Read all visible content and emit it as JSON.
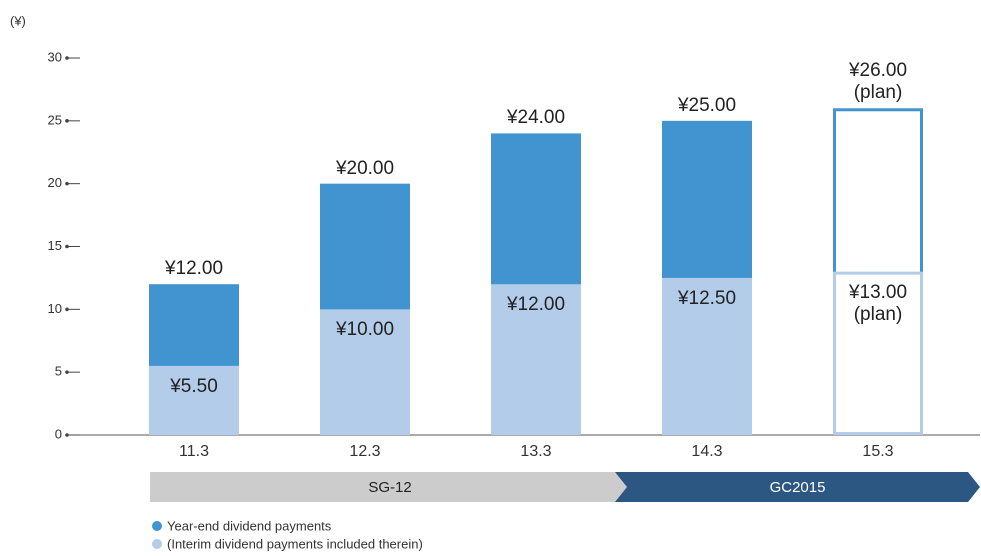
{
  "chart_data": {
    "type": "bar",
    "y_label": "(¥)",
    "categories": [
      "11.3",
      "12.3",
      "13.3",
      "14.3",
      "15.3"
    ],
    "series": [
      {
        "name": "Year-end dividend payments",
        "color": "#4194d0",
        "values": [
          12,
          20,
          24,
          25,
          26
        ],
        "value_labels": [
          "¥12.00",
          "¥20.00",
          "¥24.00",
          "¥25.00",
          "¥26.00 (plan)"
        ]
      },
      {
        "name": "(Interim dividend payments included therein)",
        "color": "#b3cce9",
        "values": [
          5.5,
          10,
          12,
          12.5,
          13
        ],
        "value_labels": [
          "¥5.50",
          "¥10.00",
          "¥12.00",
          "¥12.50",
          "¥13.00 (plan)"
        ]
      }
    ],
    "outline": [
      false,
      false,
      false,
      false,
      true
    ],
    "phases": [
      {
        "label": "SG-12",
        "color": "#cccccc"
      },
      {
        "label": "GC2015",
        "color": "#2b5782"
      }
    ],
    "ylim": [
      0,
      30
    ],
    "yticks": [
      0,
      5,
      10,
      15,
      20,
      25,
      30
    ]
  }
}
